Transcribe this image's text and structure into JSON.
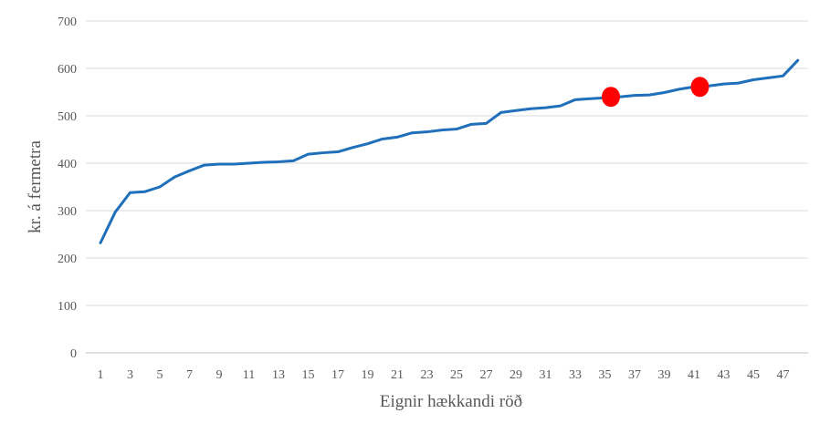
{
  "chart_data": {
    "type": "line",
    "xlabel": "Eignir hækkandi röð",
    "ylabel": "kr. á fermetra",
    "ylim": [
      0,
      700
    ],
    "yticks": [
      0,
      100,
      200,
      300,
      400,
      500,
      600,
      700
    ],
    "xlim": [
      1,
      48
    ],
    "xticks": [
      1,
      3,
      5,
      7,
      9,
      11,
      13,
      15,
      17,
      19,
      21,
      23,
      25,
      27,
      29,
      31,
      33,
      35,
      37,
      39,
      41,
      43,
      45,
      47
    ],
    "grid": "horizontal",
    "line_color": "#1f6fba",
    "marker_color": "#ff0000",
    "series": [
      {
        "x": [
          1,
          2,
          3,
          4,
          5,
          6,
          7,
          8,
          9,
          10,
          11,
          12,
          13,
          14,
          15,
          16,
          17,
          18,
          19,
          20,
          21,
          22,
          23,
          24,
          25,
          26,
          27,
          28,
          29,
          30,
          31,
          32,
          33,
          34,
          35,
          36,
          37,
          38,
          39,
          40,
          41,
          42,
          43,
          44,
          45,
          46,
          47,
          48
        ],
        "values": [
          232,
          297,
          338,
          340,
          350,
          371,
          384,
          396,
          398,
          398,
          400,
          402,
          403,
          405,
          419,
          422,
          424,
          433,
          441,
          451,
          455,
          464,
          466,
          470,
          472,
          482,
          484,
          507,
          511,
          515,
          517,
          521,
          534,
          536,
          538,
          540,
          543,
          544,
          549,
          556,
          561,
          563,
          567,
          569,
          576,
          580,
          584,
          617
        ]
      }
    ],
    "highlighted_points": [
      {
        "x": 35.4,
        "y": 540
      },
      {
        "x": 41.4,
        "y": 561
      }
    ]
  }
}
